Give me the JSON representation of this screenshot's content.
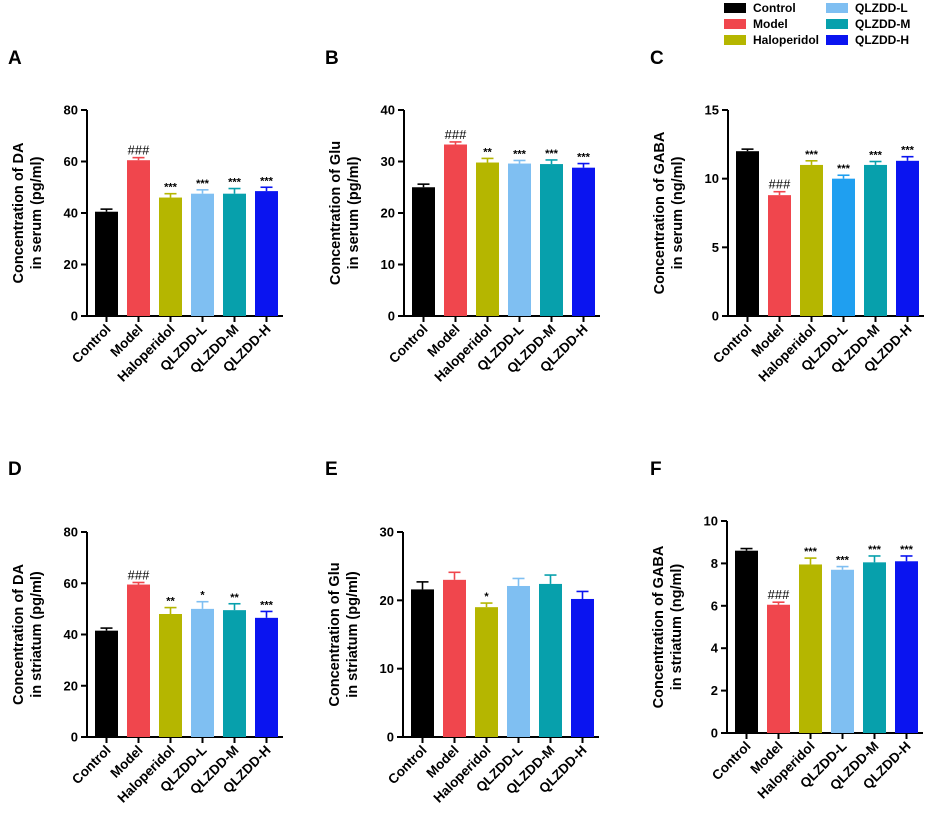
{
  "legend": {
    "entries": [
      {
        "label": "Control",
        "color": "#000000"
      },
      {
        "label": "Model",
        "color": "#f0464d"
      },
      {
        "label": "Haloperidol",
        "color": "#b5b600"
      },
      {
        "label": "QLZDD-L",
        "color": "#7fbff2"
      },
      {
        "label": "QLZDD-M",
        "color": "#07a0ac"
      },
      {
        "label": "QLZDD-H",
        "color": "#0a14f0"
      }
    ]
  },
  "chart_data": [
    {
      "type": "bar",
      "panel": "A",
      "ylabel_line1": "Concentration of DA",
      "ylabel_line2": "in serum (pg/ml)",
      "ylim": [
        0,
        80
      ],
      "yticks": [
        "0",
        "20",
        "40",
        "60",
        "80"
      ],
      "categories": [
        "Control",
        "Model",
        "Haloperidol",
        "QLZDD-L",
        "QLZDD-M",
        "QLZDD-H"
      ],
      "colors": [
        "#000000",
        "#f0464d",
        "#b5b600",
        "#7fbff2",
        "#07a0ac",
        "#0a14f0"
      ],
      "values": [
        40.5,
        60.5,
        46.0,
        47.5,
        47.5,
        48.5
      ],
      "errors": [
        1.0,
        1.0,
        1.5,
        1.5,
        2.0,
        1.5
      ],
      "annotations": [
        "",
        "###",
        "***",
        "***",
        "***",
        "***"
      ]
    },
    {
      "type": "bar",
      "panel": "B",
      "ylabel_line1": "Concentration of Glu",
      "ylabel_line2": "in serum (pg/ml)",
      "ylim": [
        0,
        40
      ],
      "yticks": [
        "0",
        "10",
        "20",
        "30",
        "40"
      ],
      "categories": [
        "Control",
        "Model",
        "Haloperidol",
        "QLZDD-L",
        "QLZDD-M",
        "QLZDD-H"
      ],
      "colors": [
        "#000000",
        "#f0464d",
        "#b5b600",
        "#7fbff2",
        "#07a0ac",
        "#0a14f0"
      ],
      "values": [
        25.0,
        33.3,
        29.8,
        29.6,
        29.5,
        28.8
      ],
      "errors": [
        0.6,
        0.5,
        0.8,
        0.6,
        0.8,
        0.8
      ],
      "annotations": [
        "",
        "###",
        "**",
        "***",
        "***",
        "***"
      ]
    },
    {
      "type": "bar",
      "panel": "C",
      "ylabel_line1": "Concentration of GABA",
      "ylabel_line2": "in serum (ng/ml)",
      "ylim": [
        0,
        15
      ],
      "yticks": [
        "0",
        "5",
        "10",
        "15"
      ],
      "categories": [
        "Control",
        "Model",
        "Haloperidol",
        "QLZDD-L",
        "QLZDD-M",
        "QLZDD-H"
      ],
      "colors": [
        "#000000",
        "#f0464d",
        "#b5b600",
        "#1f9ff0",
        "#07a0ac",
        "#0a14f0"
      ],
      "values": [
        12.0,
        8.8,
        11.0,
        10.0,
        11.0,
        11.3
      ],
      "errors": [
        0.15,
        0.25,
        0.3,
        0.25,
        0.25,
        0.3
      ],
      "annotations": [
        "",
        "###",
        "***",
        "***",
        "***",
        "***"
      ]
    },
    {
      "type": "bar",
      "panel": "D",
      "ylabel_line1": "Concentration of DA",
      "ylabel_line2": "in striatum (pg/ml)",
      "ylim": [
        0,
        80
      ],
      "yticks": [
        "0",
        "20",
        "40",
        "60",
        "80"
      ],
      "categories": [
        "Control",
        "Model",
        "Haloperidol",
        "QLZDD-L",
        "QLZDD-M",
        "QLZDD-H"
      ],
      "colors": [
        "#000000",
        "#f0464d",
        "#b5b600",
        "#7fbff2",
        "#07a0ac",
        "#0a14f0"
      ],
      "values": [
        41.5,
        59.5,
        48.0,
        50.0,
        49.5,
        46.5
      ],
      "errors": [
        1.0,
        0.8,
        2.5,
        2.8,
        2.5,
        2.5
      ],
      "annotations": [
        "",
        "###",
        "**",
        "*",
        "**",
        "***"
      ]
    },
    {
      "type": "bar",
      "panel": "E",
      "ylabel_line1": "Concentration of Glu",
      "ylabel_line2": "in striatum (pg/ml)",
      "ylim": [
        0,
        30
      ],
      "yticks": [
        "0",
        "10",
        "20",
        "30"
      ],
      "categories": [
        "Control",
        "Model",
        "Haloperidol",
        "QLZDD-L",
        "QLZDD-M",
        "QLZDD-H"
      ],
      "colors": [
        "#000000",
        "#f0464d",
        "#b5b600",
        "#7fbff2",
        "#07a0ac",
        "#0a14f0"
      ],
      "values": [
        21.6,
        23.0,
        19.0,
        22.1,
        22.4,
        20.2
      ],
      "errors": [
        1.1,
        1.1,
        0.6,
        1.1,
        1.3,
        1.1
      ],
      "annotations": [
        "",
        "",
        "*",
        "",
        "",
        ""
      ]
    },
    {
      "type": "bar",
      "panel": "F",
      "ylabel_line1": "Concentration of GABA",
      "ylabel_line2": "in striatum (ng/ml)",
      "ylim": [
        0,
        10
      ],
      "yticks": [
        "0",
        "2",
        "4",
        "6",
        "8",
        "10"
      ],
      "categories": [
        "Control",
        "Model",
        "Haloperidol",
        "QLZDD-L",
        "QLZDD-M",
        "QLZDD-H"
      ],
      "colors": [
        "#000000",
        "#f0464d",
        "#b5b600",
        "#7fbff2",
        "#07a0ac",
        "#0a14f0"
      ],
      "values": [
        8.6,
        6.05,
        7.95,
        7.7,
        8.05,
        8.1
      ],
      "errors": [
        0.1,
        0.12,
        0.3,
        0.15,
        0.3,
        0.25
      ],
      "annotations": [
        "",
        "###",
        "***",
        "***",
        "***",
        "***"
      ]
    }
  ]
}
